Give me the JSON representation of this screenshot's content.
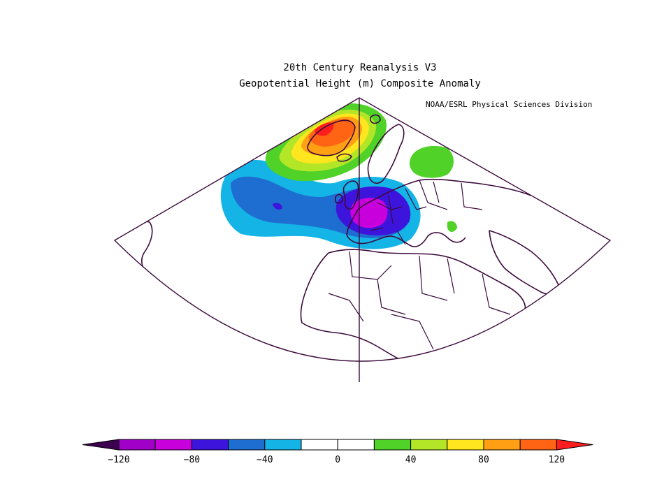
{
  "title": "20th Century Reanalysis V3",
  "subtitle": "Geopotential Height (m) Composite Anomaly",
  "credit": "NOAA/ESRL Physical Sciences Division",
  "colorbar": {
    "ticks": [
      "-120",
      "-80",
      "-40",
      "0",
      "40",
      "80",
      "120"
    ],
    "colors": [
      "#a000c8",
      "#c800dc",
      "#3c14dc",
      "#1e6ed2",
      "#14b4e6",
      "#ffffff",
      "#ffffff",
      "#50d228",
      "#b4e628",
      "#ffe61e",
      "#ffa014",
      "#ff6414"
    ],
    "low_end_color": "#3c0050",
    "high_end_color": "#ff1e1e"
  },
  "map": {
    "projection": "conic sector",
    "fill": "#ffffff",
    "outline_color": "#3c0a3c"
  }
}
